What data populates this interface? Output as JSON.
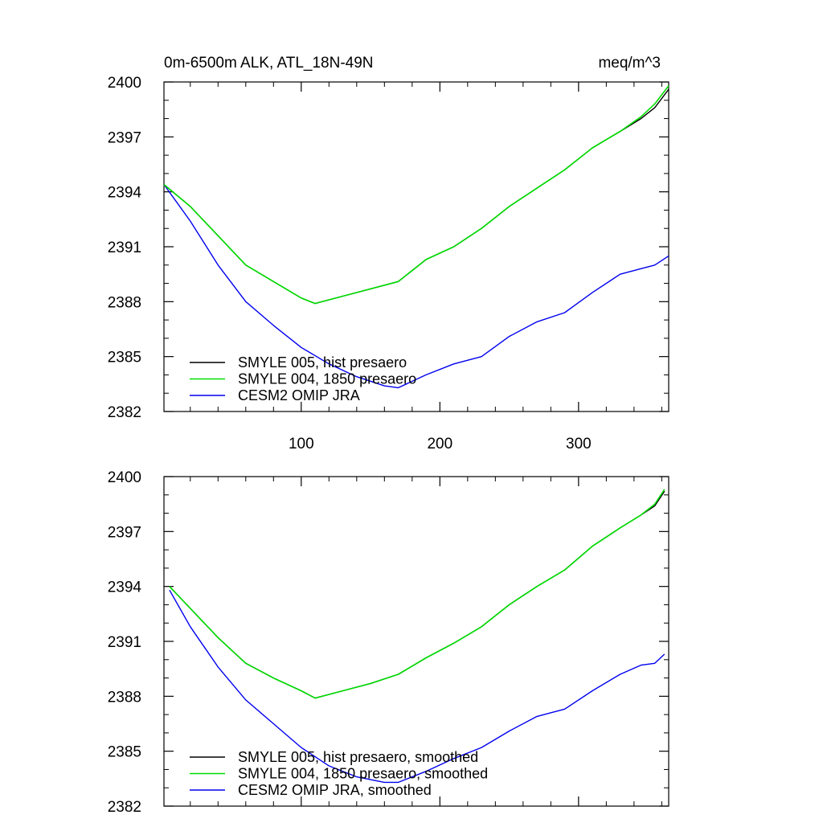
{
  "chart_data": [
    {
      "type": "line",
      "title_left": "0m-6500m ALK, ATL_18N-49N",
      "title_right": "meq/m^3",
      "xlabel": "",
      "ylabel": "",
      "xlim": [
        1,
        365
      ],
      "ylim": [
        2382,
        2400
      ],
      "xticks": [
        100,
        200,
        300
      ],
      "yticks": [
        2382,
        2385,
        2388,
        2391,
        2394,
        2397,
        2400
      ],
      "x_tick_labels_shown": true,
      "grid": false,
      "legend": "bottom-left",
      "series": [
        {
          "name": "SMYLE 005, hist presaero",
          "color": "#000000",
          "x": [
            1,
            20,
            40,
            60,
            80,
            100,
            110,
            130,
            150,
            170,
            190,
            210,
            230,
            250,
            270,
            290,
            310,
            330,
            345,
            355,
            365
          ],
          "y": [
            2394.4,
            2393.2,
            2391.6,
            2390.0,
            2389.1,
            2388.2,
            2387.9,
            2388.3,
            2388.7,
            2389.1,
            2390.3,
            2391.0,
            2392.0,
            2393.2,
            2394.2,
            2395.2,
            2396.4,
            2397.3,
            2398.0,
            2398.6,
            2399.6
          ]
        },
        {
          "name": "SMYLE 004, 1850 presaero",
          "color": "#00dd00",
          "x": [
            1,
            20,
            40,
            60,
            80,
            100,
            110,
            130,
            150,
            170,
            190,
            210,
            230,
            250,
            270,
            290,
            310,
            330,
            345,
            355,
            365
          ],
          "y": [
            2394.4,
            2393.2,
            2391.6,
            2390.0,
            2389.1,
            2388.2,
            2387.9,
            2388.3,
            2388.7,
            2389.1,
            2390.3,
            2391.0,
            2392.0,
            2393.2,
            2394.2,
            2395.2,
            2396.4,
            2397.3,
            2398.1,
            2398.8,
            2399.8
          ]
        },
        {
          "name": "CESM2 OMIP JRA",
          "color": "#0000ee",
          "x": [
            1,
            20,
            40,
            60,
            80,
            100,
            120,
            140,
            160,
            170,
            190,
            210,
            230,
            250,
            270,
            290,
            310,
            330,
            345,
            355,
            365
          ],
          "y": [
            2394.4,
            2392.4,
            2390.0,
            2388.0,
            2386.7,
            2385.5,
            2384.6,
            2383.9,
            2383.4,
            2383.3,
            2384.0,
            2384.6,
            2385.0,
            2386.1,
            2386.9,
            2387.4,
            2388.5,
            2389.5,
            2389.8,
            2390.0,
            2390.5
          ]
        }
      ]
    },
    {
      "type": "line",
      "title_left": "",
      "title_right": "",
      "xlabel": "",
      "ylabel": "",
      "xlim": [
        1,
        365
      ],
      "ylim": [
        2382,
        2400
      ],
      "xticks": [
        100,
        200,
        300
      ],
      "yticks": [
        2382,
        2385,
        2388,
        2391,
        2394,
        2397,
        2400
      ],
      "x_tick_labels_shown": false,
      "grid": false,
      "legend": "bottom-left",
      "series": [
        {
          "name": "SMYLE 005, hist presaero, smoothed",
          "color": "#000000",
          "x": [
            5,
            20,
            40,
            60,
            80,
            100,
            110,
            130,
            150,
            170,
            190,
            210,
            230,
            250,
            270,
            290,
            310,
            330,
            345,
            355,
            362
          ],
          "y": [
            2394.0,
            2392.8,
            2391.2,
            2389.8,
            2389.0,
            2388.3,
            2387.9,
            2388.3,
            2388.7,
            2389.2,
            2390.1,
            2390.9,
            2391.8,
            2393.0,
            2394.0,
            2394.9,
            2396.2,
            2397.2,
            2397.9,
            2398.4,
            2399.2
          ]
        },
        {
          "name": "SMYLE 004, 1850 presaero, smoothed",
          "color": "#00dd00",
          "x": [
            5,
            20,
            40,
            60,
            80,
            100,
            110,
            130,
            150,
            170,
            190,
            210,
            230,
            250,
            270,
            290,
            310,
            330,
            345,
            355,
            362
          ],
          "y": [
            2394.0,
            2392.8,
            2391.2,
            2389.8,
            2389.0,
            2388.3,
            2387.9,
            2388.3,
            2388.7,
            2389.2,
            2390.1,
            2390.9,
            2391.8,
            2393.0,
            2394.0,
            2394.9,
            2396.2,
            2397.2,
            2397.9,
            2398.5,
            2399.3
          ]
        },
        {
          "name": "CESM2 OMIP JRA, smoothed",
          "color": "#0000ee",
          "x": [
            5,
            20,
            40,
            60,
            80,
            100,
            120,
            140,
            160,
            170,
            190,
            210,
            230,
            250,
            270,
            290,
            310,
            330,
            345,
            355,
            362
          ],
          "y": [
            2393.8,
            2391.8,
            2389.6,
            2387.8,
            2386.5,
            2385.2,
            2384.2,
            2383.6,
            2383.3,
            2383.3,
            2383.9,
            2384.6,
            2385.2,
            2386.1,
            2386.9,
            2387.3,
            2388.3,
            2389.2,
            2389.7,
            2389.8,
            2390.3
          ]
        }
      ]
    }
  ]
}
